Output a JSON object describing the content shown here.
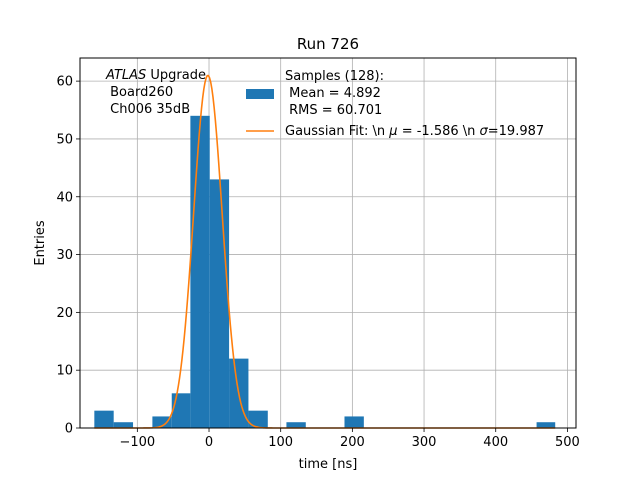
{
  "chart_data": {
    "type": "bar",
    "title": "Run 726",
    "xlabel": "time [ns]",
    "ylabel": "Entries",
    "xlim": [
      -180,
      512
    ],
    "ylim": [
      0,
      64
    ],
    "grid": true,
    "bar_color": "#1f77b4",
    "fit_color": "#ff7f0e",
    "xticks": [
      -100,
      0,
      100,
      200,
      300,
      400,
      500
    ],
    "xtick_labels": [
      "−100",
      "0",
      "100",
      "200",
      "300",
      "400",
      "500"
    ],
    "yticks": [
      0,
      10,
      20,
      30,
      40,
      50,
      60
    ],
    "ytick_labels": [
      "0",
      "10",
      "20",
      "30",
      "40",
      "50",
      "60"
    ],
    "bins": [
      {
        "x0": -160,
        "x1": -133,
        "value": 3
      },
      {
        "x0": -133,
        "x1": -106,
        "value": 1
      },
      {
        "x0": -106,
        "x1": -79,
        "value": 0
      },
      {
        "x0": -79,
        "x1": -52,
        "value": 2
      },
      {
        "x0": -52,
        "x1": -26,
        "value": 6
      },
      {
        "x0": -26,
        "x1": 1,
        "value": 54
      },
      {
        "x0": 1,
        "x1": 28,
        "value": 43
      },
      {
        "x0": 28,
        "x1": 55,
        "value": 12
      },
      {
        "x0": 55,
        "x1": 82,
        "value": 3
      },
      {
        "x0": 82,
        "x1": 108,
        "value": 0
      },
      {
        "x0": 108,
        "x1": 135,
        "value": 1
      },
      {
        "x0": 135,
        "x1": 162,
        "value": 0
      },
      {
        "x0": 162,
        "x1": 189,
        "value": 0
      },
      {
        "x0": 189,
        "x1": 216,
        "value": 2
      },
      {
        "x0": 216,
        "x1": 242,
        "value": 0
      },
      {
        "x0": 242,
        "x1": 269,
        "value": 0
      },
      {
        "x0": 269,
        "x1": 296,
        "value": 0
      },
      {
        "x0": 296,
        "x1": 323,
        "value": 0
      },
      {
        "x0": 323,
        "x1": 349,
        "value": 0
      },
      {
        "x0": 349,
        "x1": 376,
        "value": 0
      },
      {
        "x0": 376,
        "x1": 403,
        "value": 0
      },
      {
        "x0": 403,
        "x1": 430,
        "value": 0
      },
      {
        "x0": 430,
        "x1": 457,
        "value": 0
      },
      {
        "x0": 457,
        "x1": 483,
        "value": 1
      }
    ],
    "fit": {
      "amplitude": 61,
      "mu": -1.586,
      "sigma": 19.987,
      "x_range": [
        -160,
        483
      ]
    },
    "annotation": {
      "line1_italic": "ATLAS",
      "line1_rest": " Upgrade",
      "line2": " Board260",
      "line3": " Ch006 35dB"
    },
    "legend": {
      "position": "top-right",
      "hist_line1": "Samples (128):",
      "hist_line2": " Mean = 4.892",
      "hist_line3": " RMS = 60.701",
      "fit_prefix": "Gaussian Fit: \\n ",
      "fit_mu_symbol": "μ",
      "fit_mid": " = -1.586 \\n ",
      "fit_sigma_symbol": "σ",
      "fit_suffix": "=19.987"
    }
  }
}
